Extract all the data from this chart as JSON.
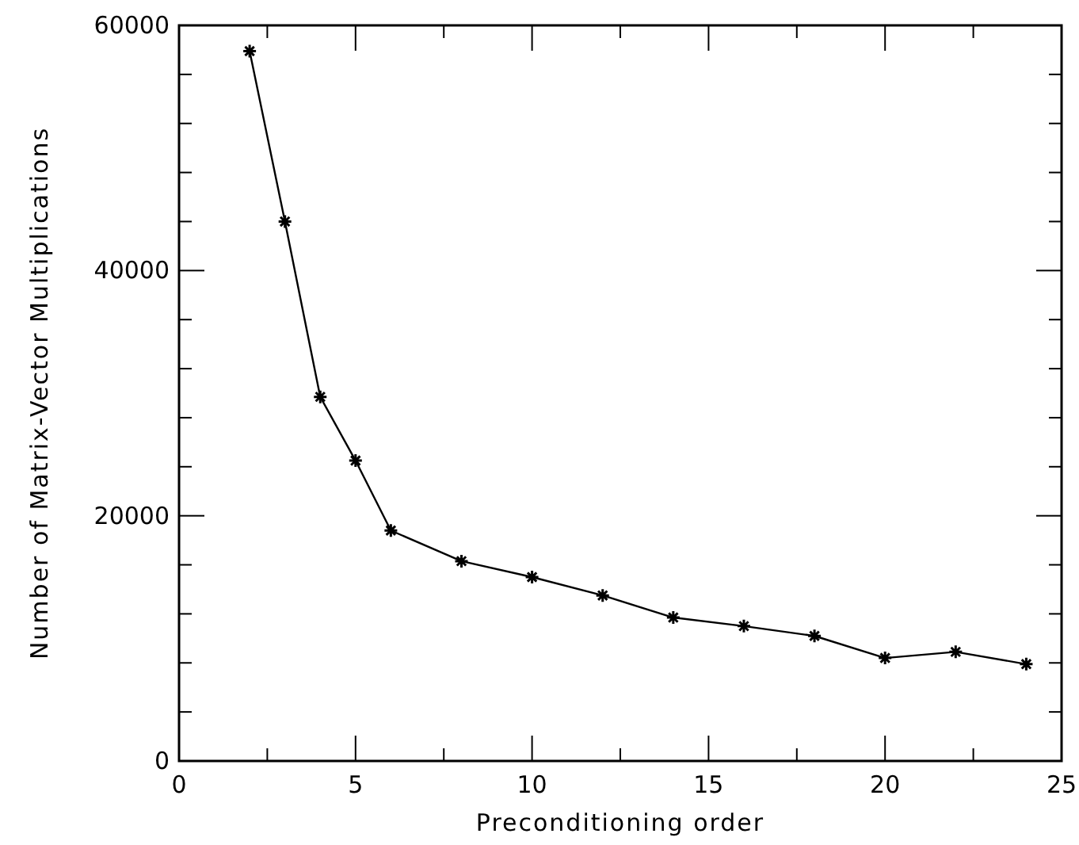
{
  "chart_data": {
    "type": "line",
    "xlabel": "Preconditioning order",
    "ylabel": "Number of Matrix-Vector Multiplications",
    "x": [
      2,
      3,
      4,
      5,
      6,
      8,
      10,
      12,
      14,
      16,
      18,
      20,
      22,
      24
    ],
    "series": [
      {
        "color": "#000000",
        "values": [
          57900,
          44000,
          29700,
          24500,
          18800,
          16300,
          15000,
          13500,
          11700,
          11000,
          10200,
          8400,
          8900,
          7900
        ]
      }
    ],
    "xlim": [
      0,
      25
    ],
    "ylim": [
      0,
      60000
    ],
    "xticks": [
      0,
      {
        "value": 2.5,
        "label": null
      },
      5,
      {
        "value": 7.5,
        "label": null
      },
      10,
      {
        "value": 12.5,
        "label": null
      },
      15,
      {
        "value": 17.5,
        "label": null
      },
      20,
      {
        "value": 22.5,
        "label": null
      },
      25
    ],
    "yticks": [
      0,
      {
        "value": 4000,
        "label": null
      },
      {
        "value": 8000,
        "label": null
      },
      {
        "value": 12000,
        "label": null
      },
      {
        "value": 16000,
        "label": null
      },
      20000,
      {
        "value": 24000,
        "label": null
      },
      {
        "value": 28000,
        "label": null
      },
      {
        "value": 32000,
        "label": null
      },
      {
        "value": 36000,
        "label": null
      },
      40000,
      {
        "value": 44000,
        "label": null
      },
      {
        "value": 48000,
        "label": null
      },
      {
        "value": 52000,
        "label": null
      },
      {
        "value": 56000,
        "label": null
      },
      60000
    ],
    "marker": "cross",
    "line_style": "solid",
    "grid": false
  }
}
